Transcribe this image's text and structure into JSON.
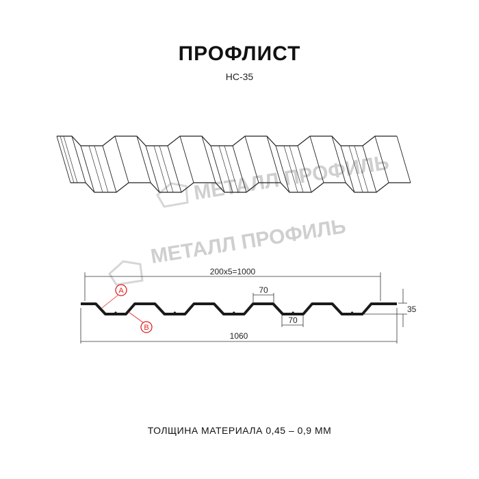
{
  "title": "ПРОФЛИСТ",
  "subtitle": "НС-35",
  "watermark": "МЕТАЛЛ ПРОФИЛЬ",
  "dimensions": {
    "pitch_total": "200х5=1000",
    "crest_width": "70",
    "valley_width": "70",
    "height": "35",
    "total_width": "1060"
  },
  "callouts": {
    "a": "A",
    "b": "B"
  },
  "footer": "ТОЛЩИНА МАТЕРИАЛА 0,45 – 0,9 ММ",
  "colors": {
    "line": "#1a1a1a",
    "callout": "#e02020",
    "watermark": "#cfcfcf"
  }
}
